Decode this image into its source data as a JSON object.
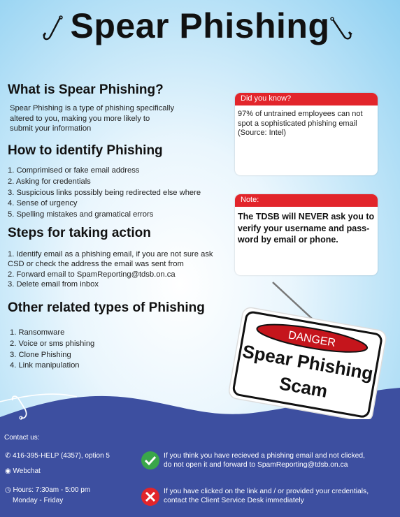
{
  "header": {
    "title": "Spear Phishing"
  },
  "section_what": {
    "heading": "What is Spear Phishing?",
    "text_lines": [
      "Spear Phishing is a type of phishing specifically",
      "altered to you, making you more likely to",
      "submit your information"
    ]
  },
  "section_identify": {
    "heading": "How to identify Phishing",
    "items": [
      "1. Comprimised or fake email address",
      "2. Asking for credentials",
      "3. Suspicious links possibly being redirected else where",
      "4. Sense of urgency",
      "5. Spelling mistakes and gramatical errors"
    ]
  },
  "section_steps": {
    "heading": "Steps for taking action",
    "items": [
      "1. Identify email as a phishing email, if you are not sure ask",
      "CSD or check the address the email was sent from",
      "2.  Forward email to SpamReporting@tdsb.on.ca",
      "3. Delete email from inbox"
    ]
  },
  "section_related": {
    "heading": "Other related types of Phishing",
    "items": [
      "1. Ransomware",
      "2. Voice or sms phishing",
      "3. Clone Phishing",
      "4. Link manipulation"
    ]
  },
  "did_you_know": {
    "label": "Did you know?",
    "lines": [
      "97% of untrained employees can not",
      "spot a sophisticated phishing email",
      "(Source: Intel)"
    ]
  },
  "note": {
    "label": "Note:",
    "lines": [
      "The TDSB will NEVER ask you to",
      "verify your username and pass-",
      "word by email or phone."
    ]
  },
  "sign": {
    "danger": "DANGER",
    "line1": "Spear Phishing",
    "line2": "Scam"
  },
  "footer": {
    "contact_label": "Contact us:",
    "phone": "416-395-HELP (4357),  option 5",
    "webchat": "Webchat",
    "hours_line1": "Hours: 7:30am - 5:00 pm",
    "hours_line2": "Monday - Friday",
    "ok_msg_line1": "If you think you have recieved a phishing email and not clicked,",
    "ok_msg_line2": "do not open it and forward to SpamReporting@tdsb.on.ca",
    "bad_msg_line1": "If you have clicked on the link and / or provided your credentials,",
    "bad_msg_line2": "contact the Client Service Desk immediately",
    "colors": {
      "wave": "#3d4fa0",
      "check": "#3aa64a",
      "cross": "#e2252b"
    }
  }
}
